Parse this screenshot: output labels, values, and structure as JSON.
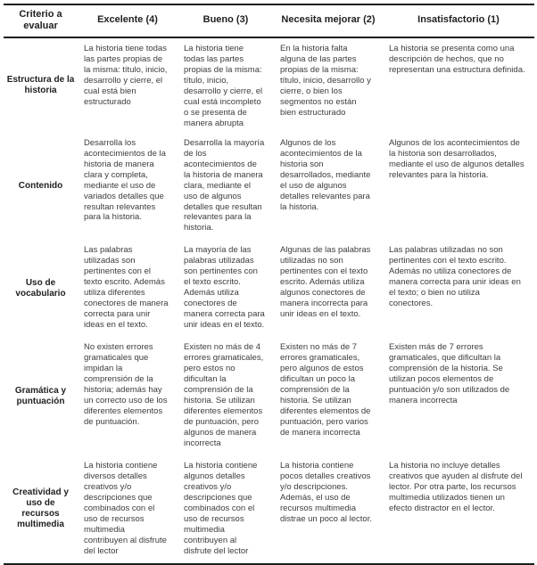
{
  "colors": {
    "background": "#ffffff",
    "border": "#1c1c1c",
    "header_text": "#1f1f1f",
    "body_text": "#3c3c3c"
  },
  "table": {
    "headers": [
      "Criterio a evaluar",
      "Excelente (4)",
      "Bueno (3)",
      "Necesita mejorar (2)",
      "Insatisfactorio (1)"
    ],
    "rows": [
      {
        "criterion": "Estructura de la historia",
        "levels": [
          "La historia tiene todas las partes propias de la misma: título, inicio, desarrollo y cierre, el cual está bien estructurado",
          "La historia tiene todas las partes propias de la misma: título, inicio, desarrollo y cierre, el cual está incompleto o se presenta de manera abrupta",
          "En la historia falta alguna de las partes propias de la misma: título, inicio, desarrollo y cierre, o bien los segmentos no  están bien estructurado",
          "La historia se presenta como una descripción de hechos, que no representan una estructura definida."
        ]
      },
      {
        "criterion": "Contenido",
        "levels": [
          "Desarrolla los acontecimientos de la historia de manera clara y completa, mediante el uso de variados detalles que resultan relevantes para la historia.",
          "Desarrolla la mayoría de los acontecimientos de la historia de manera clara, mediante el uso de algunos detalles que resultan relevantes para la historia.",
          "Algunos de los acontecimientos de la historia son desarrollados, mediante el uso de algunos detalles relevantes para la historia.",
          "Algunos de los acontecimientos de la historia son desarrollados, mediante el uso de algunos detalles relevantes para la historia."
        ]
      },
      {
        "criterion": "Uso de vocabulario",
        "levels": [
          "Las palabras utilizadas son pertinentes con el texto escrito. Además utiliza diferentes conectores de manera correcta para unir ideas en el texto.",
          "La mayoría de las palabras utilizadas son pertinentes con el texto escrito. Además utiliza conectores de manera correcta para unir ideas en el texto.",
          "Algunas de las palabras utilizadas no son pertinentes con el texto escrito. Además utiliza algunos conectores de manera incorrecta para unir ideas en el texto.",
          "Las palabras utilizadas no son pertinentes con el texto escrito. Además no utiliza conectores de manera correcta para unir ideas en el texto; o bien no utiliza conectores."
        ]
      },
      {
        "criterion": "Gramática y puntuación",
        "levels": [
          "No existen errores gramaticales que impidan la comprensión de la historia; además hay un correcto uso de los diferentes elementos de puntuación.",
          "Existen no más de 4 errores gramaticales, pero estos no dificultan la comprensión de la historia. Se utilizan diferentes elementos de puntuación, pero algunos de manera incorrecta",
          "Existen no más de 7 errores gramaticales, pero algunos de estos dificultan un poco la comprensión de la historia. Se utilizan diferentes elementos de puntuación, pero varios de manera incorrecta",
          "Existen más de 7 errores gramaticales, que dificultan la comprensión de la historia. Se utilizan pocos elementos de puntuación y/o son utilizados de manera incorrecta"
        ]
      },
      {
        "criterion": "Creatividad y uso de recursos multimedia",
        "levels": [
          "La historia contiene diversos detalles creativos y/o descripciones que combinados con el uso de recursos multimedia contribuyen al disfrute del lector",
          "La historia contiene algunos detalles creativos y/o descripciones que combinados con el uso de recursos multimedia contribuyen al disfrute del lector",
          "La historia contiene pocos detalles creativos y/o descripciones. Además, el uso de recursos multimedia distrae un poco al lector.",
          "La historia no incluye detalles creativos que ayuden al disfrute del lector. Por otra parte, los recursos multimedia utilizados tienen un efecto distractor en el lector."
        ]
      }
    ]
  }
}
